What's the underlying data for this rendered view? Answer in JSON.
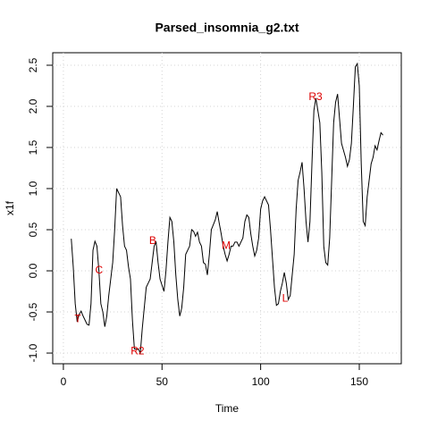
{
  "chart_data": {
    "type": "line",
    "title": "Parsed_insomnia_g2.txt",
    "x_label": "Time",
    "y_label": "x1f",
    "color": "#000000",
    "grid": true,
    "xlim": [
      -5.4,
      171.3
    ],
    "ylim": [
      -1.13,
      2.652
    ],
    "xticks": [
      0,
      50,
      100,
      150
    ],
    "yticks": [
      {
        "value": -1,
        "label": "-1.0"
      },
      -0.5,
      {
        "value": 0,
        "label": "0.0"
      },
      0.5,
      {
        "value": 1,
        "label": "1.0"
      },
      1.5,
      {
        "value": 2,
        "label": "2.0"
      },
      2.5
    ],
    "x": [
      4,
      5,
      6,
      7,
      8,
      9,
      10,
      12,
      13,
      14,
      15,
      16,
      17,
      18,
      19,
      20,
      21,
      22,
      23,
      25,
      26,
      27,
      28,
      29,
      30,
      31,
      32,
      33,
      34,
      35,
      36,
      38,
      39,
      40,
      41,
      42,
      43,
      44,
      45,
      46,
      47,
      48,
      49,
      51,
      52,
      53,
      54,
      55,
      56,
      57,
      58,
      59,
      60,
      61,
      62,
      64,
      65,
      66,
      67,
      68,
      69,
      70,
      71,
      72,
      73,
      74,
      75,
      77,
      78,
      79,
      80,
      81,
      82,
      83,
      84,
      85,
      86,
      87,
      88,
      89,
      91,
      92,
      93,
      94,
      95,
      96,
      97,
      98,
      99,
      100,
      101,
      102,
      104,
      105,
      106,
      107,
      108,
      109,
      110,
      111,
      112,
      113,
      114,
      115,
      117,
      118,
      119,
      120,
      121,
      122,
      123,
      124,
      125,
      126,
      127,
      128,
      130,
      131,
      132,
      133,
      134,
      135,
      136,
      137,
      138,
      139,
      140,
      141,
      143,
      144,
      145,
      146,
      147,
      148,
      149,
      150,
      151,
      152,
      153,
      154,
      156,
      157,
      158,
      159,
      160,
      161,
      162
    ],
    "values": [
      0.39,
      0.05,
      -0.4,
      -0.62,
      -0.53,
      -0.49,
      -0.55,
      -0.65,
      -0.66,
      -0.4,
      0.25,
      0.36,
      0.3,
      0.0,
      -0.4,
      -0.5,
      -0.68,
      -0.55,
      -0.3,
      0.1,
      0.5,
      1.0,
      0.95,
      0.9,
      0.55,
      0.3,
      0.25,
      0.05,
      -0.1,
      -0.6,
      -0.95,
      -0.95,
      -1.0,
      -0.7,
      -0.45,
      -0.2,
      -0.15,
      -0.1,
      0.1,
      0.3,
      0.35,
      0.1,
      -0.1,
      -0.25,
      0.0,
      0.35,
      0.65,
      0.6,
      0.35,
      -0.05,
      -0.35,
      -0.55,
      -0.45,
      -0.2,
      0.2,
      0.3,
      0.5,
      0.48,
      0.42,
      0.47,
      0.35,
      0.3,
      0.1,
      0.08,
      -0.05,
      0.2,
      0.5,
      0.62,
      0.72,
      0.58,
      0.45,
      0.3,
      0.2,
      0.12,
      0.2,
      0.3,
      0.3,
      0.35,
      0.35,
      0.3,
      0.4,
      0.6,
      0.68,
      0.65,
      0.45,
      0.3,
      0.18,
      0.25,
      0.4,
      0.75,
      0.85,
      0.9,
      0.8,
      0.5,
      0.15,
      -0.2,
      -0.42,
      -0.4,
      -0.25,
      -0.15,
      -0.02,
      -0.15,
      -0.35,
      -0.3,
      0.2,
      0.75,
      1.1,
      1.2,
      1.32,
      1.0,
      0.6,
      0.35,
      0.6,
      1.3,
      1.95,
      2.1,
      1.8,
      1.2,
      0.3,
      0.1,
      0.07,
      0.4,
      1.1,
      1.8,
      2.05,
      2.15,
      1.85,
      1.55,
      1.38,
      1.27,
      1.35,
      1.55,
      2.0,
      2.48,
      2.52,
      2.25,
      1.3,
      0.6,
      0.55,
      0.9,
      1.3,
      1.38,
      1.52,
      1.47,
      1.58,
      1.68,
      1.65
    ],
    "annotations": [
      {
        "text": "T",
        "x": 7.3,
        "y": -0.59,
        "color": "#dd0000"
      },
      {
        "text": "C",
        "x": 18.1,
        "y": 0.0,
        "color": "#dd0000"
      },
      {
        "text": "R2",
        "x": 37.6,
        "y": -0.98,
        "color": "#dd0000"
      },
      {
        "text": "B",
        "x": 45.3,
        "y": 0.36,
        "color": "#dd0000"
      },
      {
        "text": "M",
        "x": 82.5,
        "y": 0.3,
        "color": "#dd0000"
      },
      {
        "text": "L",
        "x": 112.4,
        "y": -0.34,
        "color": "#dd0000"
      },
      {
        "text": "R3",
        "x": 127.8,
        "y": 2.11,
        "color": "#dd0000"
      }
    ]
  }
}
